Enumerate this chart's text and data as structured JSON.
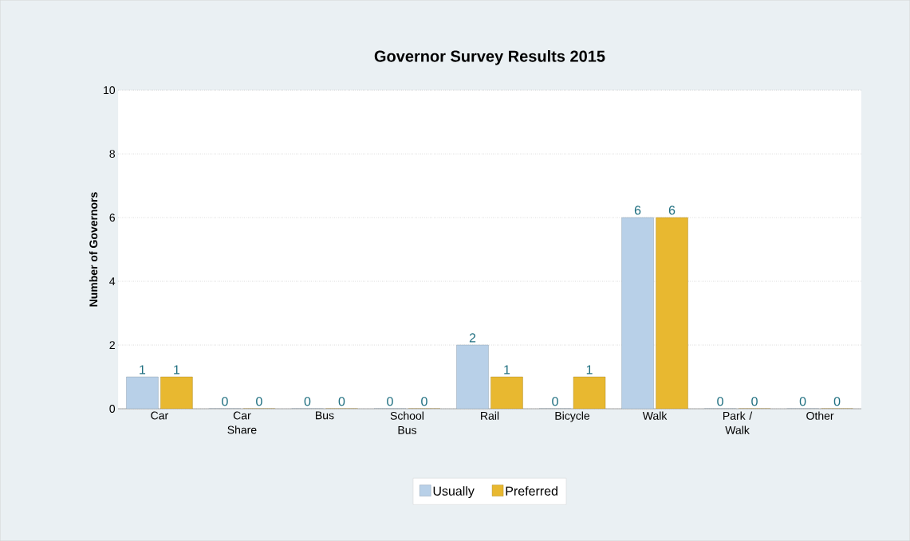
{
  "chart_data": {
    "type": "bar",
    "title": "Governor Survey Results 2015",
    "ylabel": "Number of Governors",
    "categories": [
      "Car",
      "Car Share",
      "Bus",
      "School Bus",
      "Rail",
      "Bicycle",
      "Walk",
      "Park / Walk",
      "Other"
    ],
    "series": [
      {
        "name": "Usually",
        "color": "#b8d0e8",
        "values": [
          1,
          0,
          0,
          0,
          2,
          0,
          6,
          0,
          0
        ]
      },
      {
        "name": "Preferred",
        "color": "#e8b830",
        "values": [
          1,
          0,
          0,
          0,
          1,
          1,
          6,
          0,
          0
        ]
      }
    ],
    "ylim": [
      0,
      10
    ],
    "yticks": [
      0,
      2,
      4,
      6,
      8,
      10
    ],
    "grid": "y",
    "legend": "bottom",
    "data_labels": true
  }
}
